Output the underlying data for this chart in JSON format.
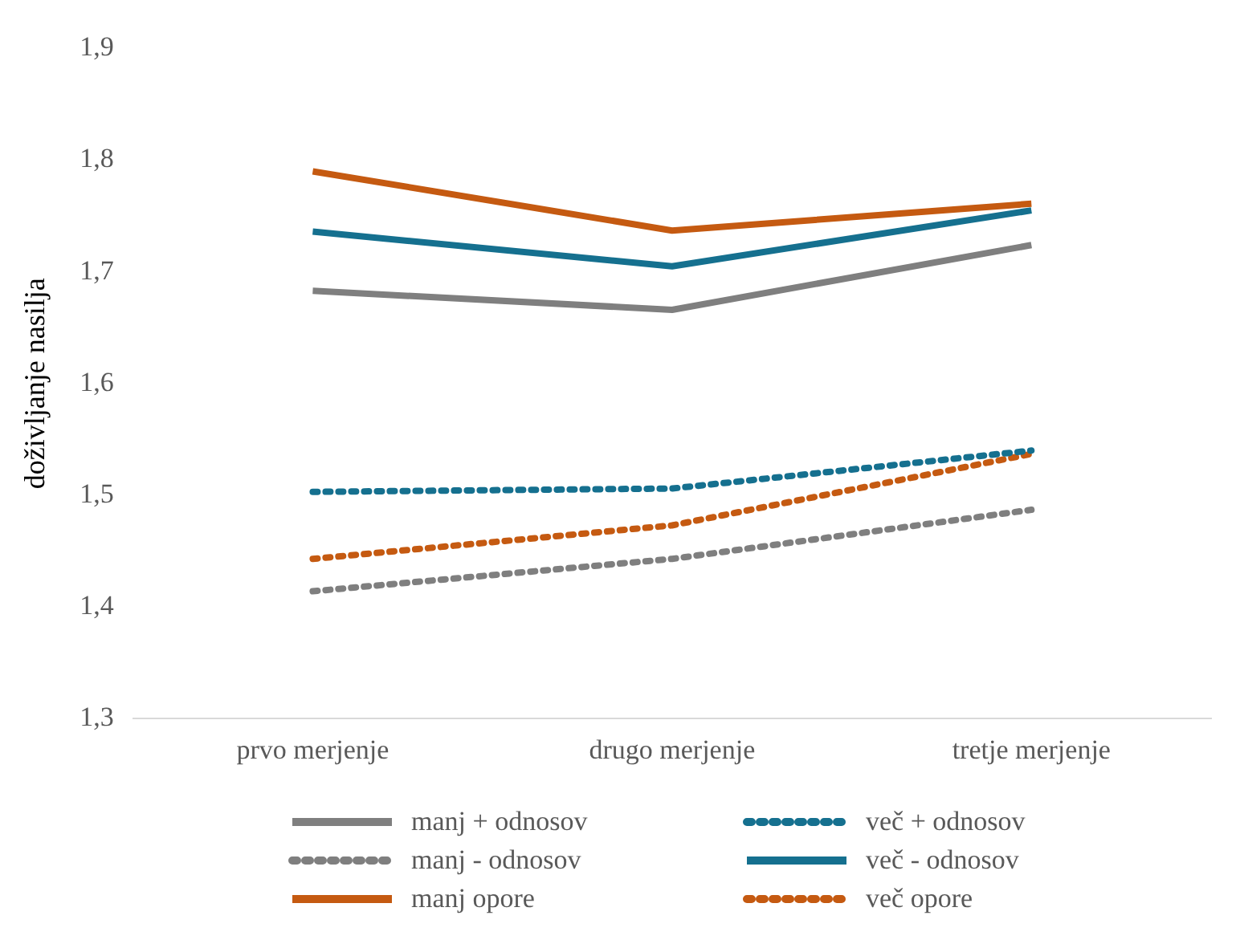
{
  "chart_data": {
    "type": "line",
    "ylabel": "doživljanje nasilja",
    "categories": [
      "prvo merjenje",
      "drugo merjenje",
      "tretje merjenje"
    ],
    "series": [
      {
        "name": "manj + odnosov",
        "color": "#7f7f7f",
        "line_style": "solid",
        "values": [
          1.683,
          1.666,
          1.724
        ]
      },
      {
        "name": "več + odnosov",
        "color": "#15708f",
        "line_style": "dotted",
        "values": [
          1.503,
          1.506,
          1.54
        ]
      },
      {
        "name": "manj - odnosov",
        "color": "#7f7f7f",
        "line_style": "dotted",
        "values": [
          1.414,
          1.443,
          1.487
        ]
      },
      {
        "name": "več - odnosov",
        "color": "#15708f",
        "line_style": "solid",
        "values": [
          1.736,
          1.705,
          1.755
        ]
      },
      {
        "name": "manj opore",
        "color": "#c55a11",
        "line_style": "solid",
        "values": [
          1.79,
          1.737,
          1.761
        ]
      },
      {
        "name": "več opore",
        "color": "#c55a11",
        "line_style": "dotted",
        "values": [
          1.443,
          1.473,
          1.537
        ]
      }
    ],
    "ylim": [
      1.3,
      1.9
    ],
    "yticks": [
      {
        "value": 1.3,
        "label": "1,3"
      },
      {
        "value": 1.4,
        "label": "1,4"
      },
      {
        "value": 1.5,
        "label": "1,5"
      },
      {
        "value": 1.6,
        "label": "1,6"
      },
      {
        "value": 1.7,
        "label": "1,7"
      },
      {
        "value": 1.8,
        "label": "1,8"
      },
      {
        "value": 1.9,
        "label": "1,9"
      }
    ],
    "grid": false,
    "legend": "bottom",
    "marker": "none"
  }
}
